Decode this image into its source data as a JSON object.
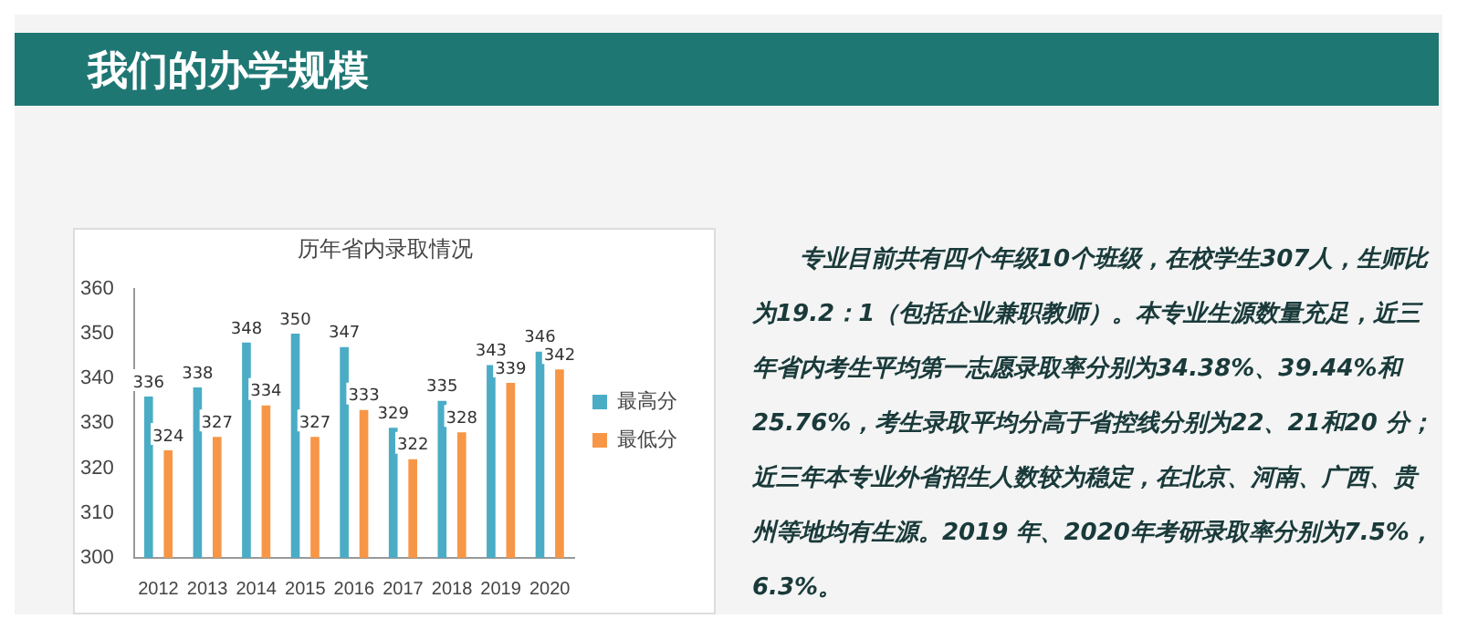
{
  "chart_data": {
    "type": "bar",
    "title": "历年省内录取情况",
    "categories": [
      "2012",
      "2013",
      "2014",
      "2015",
      "2016",
      "2017",
      "2018",
      "2019",
      "2020"
    ],
    "series": [
      {
        "name": "最高分",
        "color": "#4bacc6",
        "values": [
          336,
          338,
          348,
          350,
          347,
          329,
          335,
          343,
          346
        ]
      },
      {
        "name": "最低分",
        "color": "#f79646",
        "values": [
          324,
          327,
          334,
          327,
          333,
          322,
          328,
          339,
          342
        ]
      }
    ],
    "ylim": [
      300,
      360
    ],
    "yticks": [
      300,
      310,
      320,
      330,
      340,
      350,
      360
    ],
    "grid": false,
    "legend": "right",
    "data_labels": true,
    "annotations": [
      "我们的办学规模",
      "专业目前共有四个年级10个班级，在校学生307人，生师比为19.2：1（包括企业兼职教师）。本专业生源数量充足，近三年省内考生平均第一志愿录取率分别为34.38%、39.44%和25.76%，考生录取平均分高于省控线分别为22、21和20 分；近三年本专业外省招生人数较为稳定，在北京、河南、广西、贵州等地均有生源。2019 年、2020年考研录取率分别为7.5%，6.3%。"
    ]
  }
}
